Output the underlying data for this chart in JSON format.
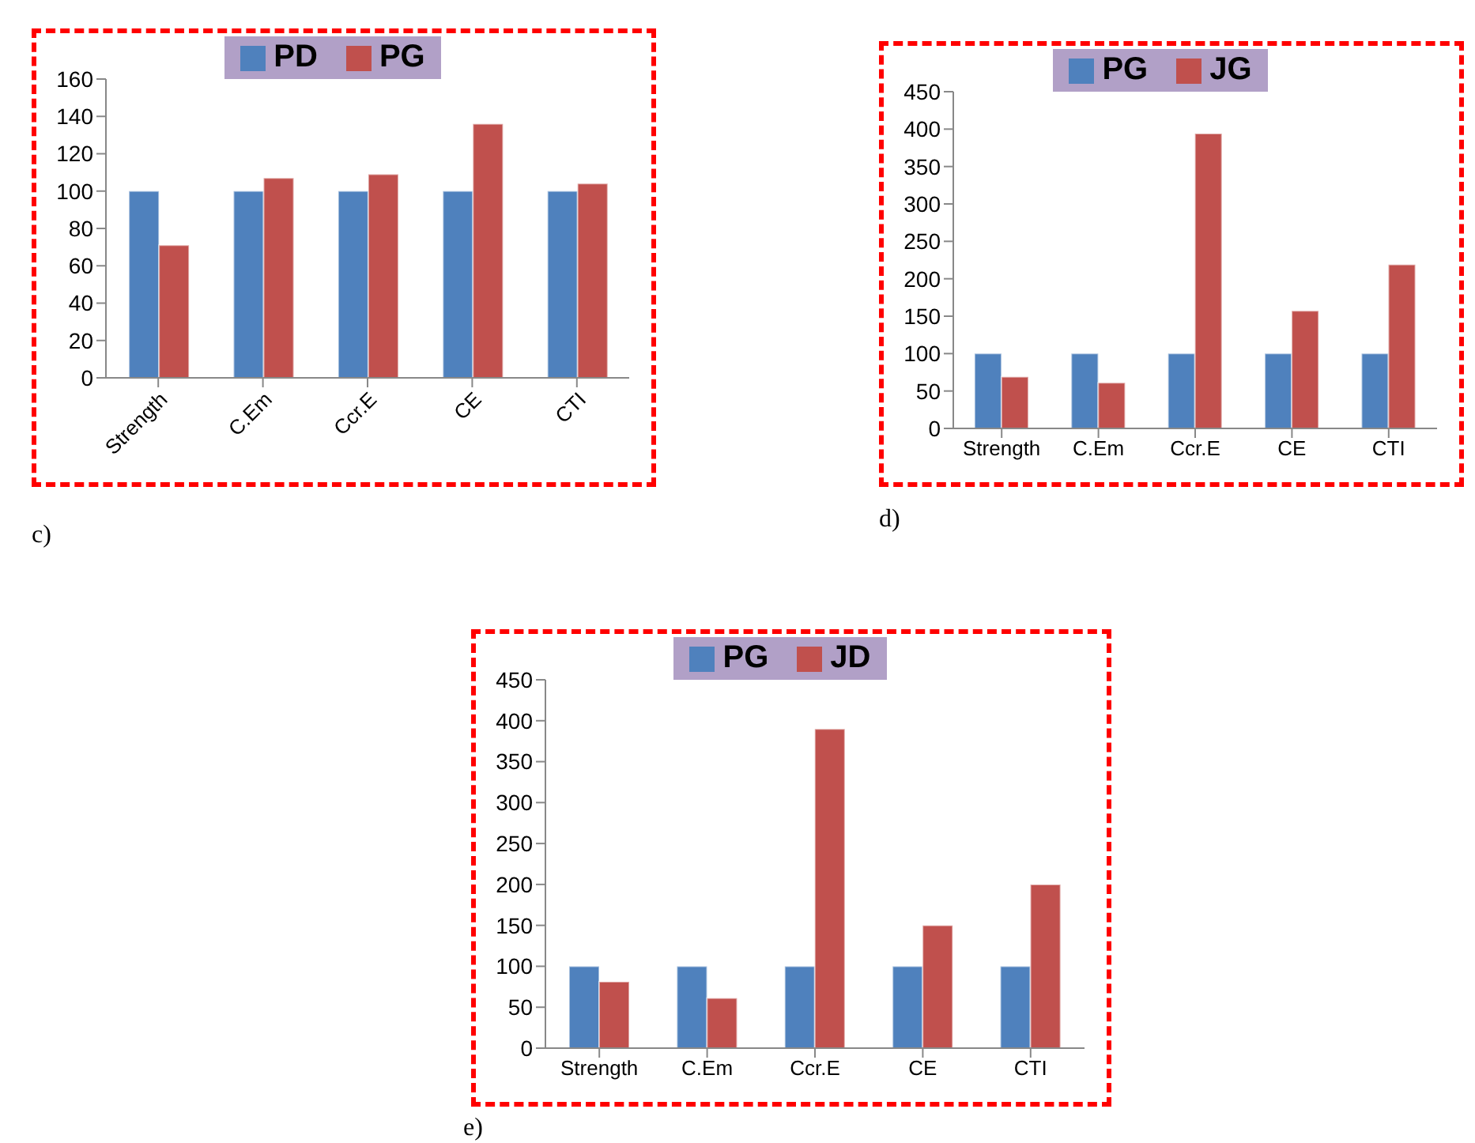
{
  "chart_data": [
    {
      "type": "bar",
      "categories": [
        "Strength",
        "C.Em",
        "Ccr.E",
        "CE",
        "CTI"
      ],
      "series": [
        {
          "name": "PD",
          "color": "#4f81bd",
          "values": [
            100,
            100,
            100,
            100,
            100
          ]
        },
        {
          "name": "PG",
          "color": "#c0504d",
          "values": [
            71,
            107,
            109,
            136,
            104
          ]
        }
      ],
      "ylim": [
        0,
        160
      ],
      "yticks": [
        0,
        20,
        40,
        60,
        80,
        100,
        120,
        140,
        160
      ],
      "grid": false,
      "legend": "top",
      "annotations": [
        "c)"
      ]
    },
    {
      "type": "bar",
      "categories": [
        "Strength",
        "C.Em",
        "Ccr.E",
        "CE",
        "CTI"
      ],
      "series": [
        {
          "name": "PG",
          "color": "#4f81bd",
          "values": [
            100,
            100,
            100,
            100,
            100
          ]
        },
        {
          "name": "JG",
          "color": "#c0504d",
          "values": [
            69,
            61,
            394,
            157,
            219
          ]
        }
      ],
      "ylim": [
        0,
        450
      ],
      "yticks": [
        0,
        50,
        100,
        150,
        200,
        250,
        300,
        350,
        400,
        450
      ],
      "grid": false,
      "legend": "top",
      "annotations": [
        "d)"
      ]
    },
    {
      "type": "bar",
      "categories": [
        "Strength",
        "C.Em",
        "Ccr.E",
        "CE",
        "CTI"
      ],
      "series": [
        {
          "name": "PG",
          "color": "#4f81bd",
          "values": [
            100,
            100,
            100,
            100,
            100
          ]
        },
        {
          "name": "JD",
          "color": "#c0504d",
          "values": [
            81,
            61,
            390,
            150,
            200
          ]
        }
      ],
      "ylim": [
        0,
        450
      ],
      "yticks": [
        0,
        50,
        100,
        150,
        200,
        250,
        300,
        350,
        400,
        450
      ],
      "grid": false,
      "legend": "top",
      "annotations": [
        "e)"
      ]
    }
  ]
}
